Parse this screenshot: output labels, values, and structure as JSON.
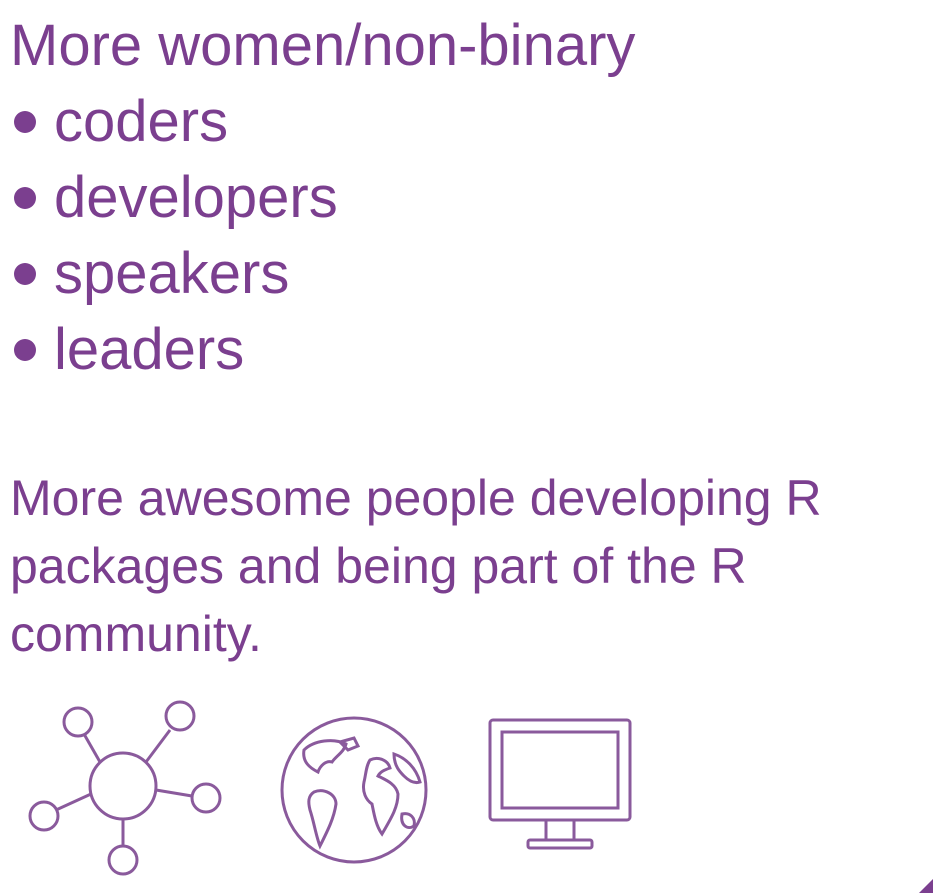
{
  "slide": {
    "heading": "More women/non-binary",
    "bullets": [
      {
        "label": "coders"
      },
      {
        "label": "developers"
      },
      {
        "label": "speakers"
      },
      {
        "label": "leaders"
      }
    ],
    "paragraph": "More awesome people developing R packages and being part of the R community.",
    "icons": [
      "network-icon",
      "globe-icon",
      "monitor-icon"
    ],
    "colors": {
      "text": "#7b3f8f",
      "icon_stroke": "#8a5a9c"
    }
  }
}
